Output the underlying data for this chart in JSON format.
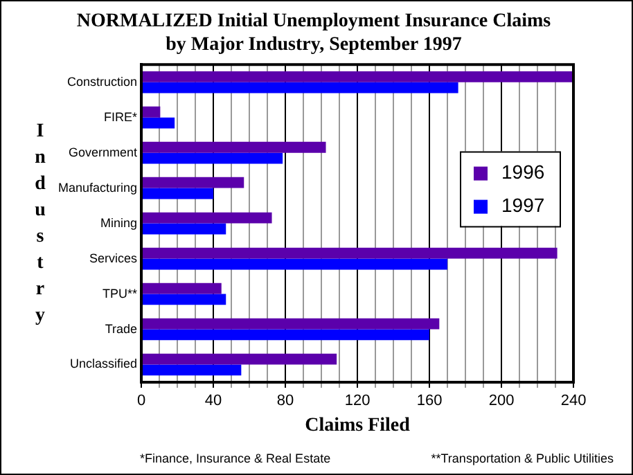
{
  "chart_data": {
    "type": "bar",
    "orientation": "horizontal",
    "title": "NORMALIZED Initial Unemployment Insurance Claims\nby Major Industry, September 1997",
    "xlabel": "Claims Filed",
    "ylabel": "Industry",
    "categories": [
      "Construction",
      "FIRE*",
      "Government",
      "Manufacturing",
      "Mining",
      "Services",
      "TPU**",
      "Trade",
      "Unclassified"
    ],
    "series": [
      {
        "name": "1996",
        "color": "#5b00ab",
        "values": [
          240,
          10.5,
          102.5,
          57,
          72.5,
          231,
          44.5,
          165.5,
          108.5
        ]
      },
      {
        "name": "1997",
        "color": "#0000ff",
        "values": [
          176,
          18.5,
          78.5,
          40,
          47,
          170,
          47,
          160,
          55.5
        ]
      }
    ],
    "xlim": [
      0,
      240
    ],
    "xticks": [
      0,
      {
        "value": 10,
        "label": null
      },
      {
        "value": 20,
        "label": null
      },
      {
        "value": 30,
        "label": null
      },
      40,
      {
        "value": 50,
        "label": null
      },
      {
        "value": 60,
        "label": null
      },
      {
        "value": 70,
        "label": null
      },
      80,
      {
        "value": 90,
        "label": null
      },
      {
        "value": 100,
        "label": null
      },
      {
        "value": 110,
        "label": null
      },
      120,
      {
        "value": 130,
        "label": null
      },
      {
        "value": 140,
        "label": null
      },
      {
        "value": 150,
        "label": null
      },
      160,
      {
        "value": 170,
        "label": null
      },
      {
        "value": 180,
        "label": null
      },
      {
        "value": 190,
        "label": null
      },
      200,
      {
        "value": 210,
        "label": null
      },
      {
        "value": 220,
        "label": null
      },
      {
        "value": 230,
        "label": null
      },
      240
    ],
    "grid": "x",
    "legend": "right",
    "annotations": [
      "*Finance, Insurance & Real Estate",
      "**Transportation & Public Utilities"
    ]
  }
}
